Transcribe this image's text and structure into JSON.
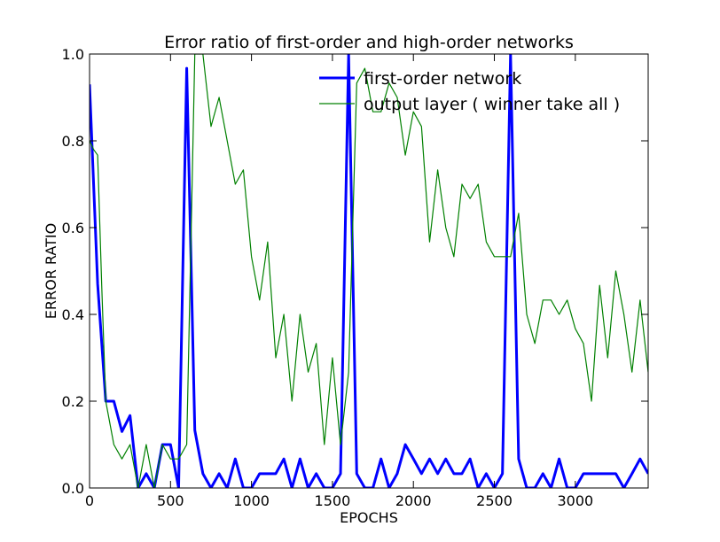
{
  "chart_data": {
    "type": "line",
    "title": "Error ratio of first-order and high-order networks",
    "xlabel": "EPOCHS",
    "ylabel": "ERROR RATIO",
    "xlim": [
      0,
      3450
    ],
    "ylim": [
      0,
      1.0
    ],
    "xticks": [
      0,
      500,
      1000,
      1500,
      2000,
      2500,
      3000
    ],
    "yticks": [
      0.0,
      0.2,
      0.4,
      0.6,
      0.8,
      1.0
    ],
    "xtick_labels": [
      "0",
      "500",
      "1000",
      "1500",
      "2000",
      "2500",
      "3000"
    ],
    "ytick_labels": [
      "0.0",
      "0.2",
      "0.4",
      "0.6",
      "0.8",
      "1.0"
    ],
    "grid": false,
    "legend_position": "top-right",
    "series": [
      {
        "name": "first-order network",
        "color": "#0000ff",
        "x": [
          0,
          50,
          100,
          150,
          200,
          250,
          300,
          350,
          400,
          450,
          500,
          550,
          600,
          650,
          700,
          750,
          800,
          850,
          900,
          950,
          1000,
          1050,
          1100,
          1150,
          1200,
          1250,
          1300,
          1350,
          1400,
          1450,
          1500,
          1550,
          1600,
          1650,
          1700,
          1750,
          1800,
          1850,
          1900,
          1950,
          2000,
          2050,
          2100,
          2150,
          2200,
          2250,
          2300,
          2350,
          2400,
          2450,
          2500,
          2550,
          2600,
          2650,
          2700,
          2750,
          2800,
          2850,
          2900,
          2950,
          3000,
          3050,
          3100,
          3150,
          3200,
          3250,
          3300,
          3350,
          3400,
          3450
        ],
        "y": [
          0.93,
          0.47,
          0.2,
          0.2,
          0.13,
          0.167,
          0.0,
          0.033,
          0.0,
          0.1,
          0.1,
          0.0,
          0.967,
          0.133,
          0.033,
          0.0,
          0.033,
          0.0,
          0.067,
          0.0,
          0.0,
          0.033,
          0.033,
          0.033,
          0.067,
          0.0,
          0.067,
          0.0,
          0.033,
          0.0,
          0.0,
          0.033,
          1.0,
          0.033,
          0.0,
          0.0,
          0.067,
          0.0,
          0.033,
          0.1,
          0.067,
          0.033,
          0.067,
          0.033,
          0.067,
          0.033,
          0.033,
          0.067,
          0.0,
          0.033,
          0.0,
          0.033,
          1.0,
          0.067,
          0.0,
          0.0,
          0.033,
          0.0,
          0.067,
          0.0,
          0.0,
          0.033,
          0.033,
          0.033,
          0.033,
          0.033,
          0.0,
          0.033,
          0.067,
          0.033
        ],
        "line_width": 3
      },
      {
        "name": "output layer ( winner take all )",
        "color": "#008000",
        "x": [
          0,
          25,
          50,
          75,
          100,
          150,
          200,
          250,
          300,
          350,
          400,
          450,
          500,
          550,
          600,
          650,
          700,
          750,
          800,
          850,
          900,
          950,
          1000,
          1050,
          1100,
          1150,
          1200,
          1250,
          1300,
          1350,
          1400,
          1450,
          1500,
          1550,
          1600,
          1650,
          1700,
          1750,
          1800,
          1850,
          1900,
          1950,
          2000,
          2050,
          2100,
          2150,
          2200,
          2250,
          2300,
          2350,
          2400,
          2450,
          2500,
          2550,
          2600,
          2650,
          2700,
          2750,
          2800,
          2850,
          2900,
          2950,
          3000,
          3050,
          3100,
          3150,
          3200,
          3250,
          3300,
          3350,
          3400,
          3450
        ],
        "y": [
          0.8,
          0.78,
          0.767,
          0.467,
          0.2,
          0.1,
          0.067,
          0.1,
          0.0,
          0.1,
          0.0,
          0.1,
          0.067,
          0.067,
          0.1,
          1.0,
          1.0,
          0.833,
          0.9,
          0.8,
          0.7,
          0.733,
          0.533,
          0.433,
          0.567,
          0.3,
          0.4,
          0.2,
          0.4,
          0.267,
          0.333,
          0.1,
          0.3,
          0.1,
          0.267,
          0.933,
          0.967,
          0.867,
          0.867,
          0.933,
          0.9,
          0.767,
          0.867,
          0.833,
          0.567,
          0.733,
          0.6,
          0.533,
          0.7,
          0.667,
          0.7,
          0.567,
          0.533,
          0.533,
          0.533,
          0.633,
          0.4,
          0.333,
          0.433,
          0.433,
          0.4,
          0.433,
          0.367,
          0.333,
          0.2,
          0.467,
          0.3,
          0.5,
          0.4,
          0.267,
          0.433,
          0.267
        ],
        "line_width": 1.2
      }
    ]
  }
}
